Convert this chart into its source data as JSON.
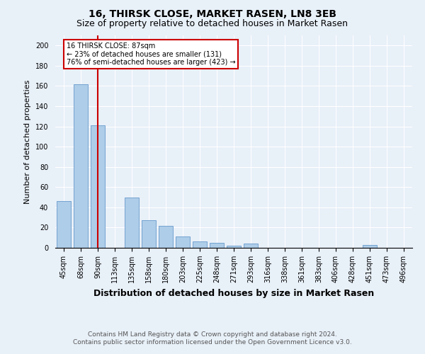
{
  "title": "16, THIRSK CLOSE, MARKET RASEN, LN8 3EB",
  "subtitle": "Size of property relative to detached houses in Market Rasen",
  "xlabel": "Distribution of detached houses by size in Market Rasen",
  "ylabel": "Number of detached properties",
  "categories": [
    "45sqm",
    "68sqm",
    "90sqm",
    "113sqm",
    "135sqm",
    "158sqm",
    "180sqm",
    "203sqm",
    "225sqm",
    "248sqm",
    "271sqm",
    "293sqm",
    "316sqm",
    "338sqm",
    "361sqm",
    "383sqm",
    "406sqm",
    "428sqm",
    "451sqm",
    "473sqm",
    "496sqm"
  ],
  "values": [
    46,
    162,
    121,
    0,
    50,
    27,
    22,
    11,
    6,
    5,
    2,
    4,
    0,
    0,
    0,
    0,
    0,
    0,
    3,
    0,
    0
  ],
  "bar_color": "#aecde8",
  "bar_edge_color": "#6699cc",
  "vline_x_index": 2,
  "vline_color": "#cc0000",
  "vline_label": "16 THIRSK CLOSE: 87sqm",
  "annotation_line1": "← 23% of detached houses are smaller (131)",
  "annotation_line2": "76% of semi-detached houses are larger (423) →",
  "annotation_box_color": "#cc0000",
  "ylim": [
    0,
    210
  ],
  "yticks": [
    0,
    20,
    40,
    60,
    80,
    100,
    120,
    140,
    160,
    180,
    200
  ],
  "footer_line1": "Contains HM Land Registry data © Crown copyright and database right 2024.",
  "footer_line2": "Contains public sector information licensed under the Open Government Licence v3.0.",
  "bg_color": "#e8f0f8",
  "plot_bg_color": "#e8f0f8",
  "title_fontsize": 10,
  "subtitle_fontsize": 9,
  "xlabel_fontsize": 9,
  "ylabel_fontsize": 8,
  "tick_fontsize": 7,
  "annotation_fontsize": 7,
  "footer_fontsize": 6.5
}
